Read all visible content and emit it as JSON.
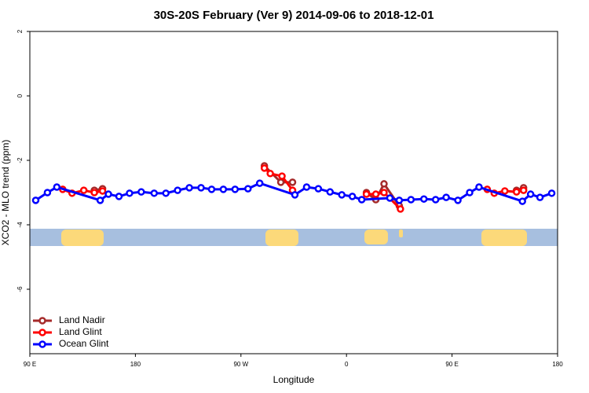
{
  "chart_data": {
    "type": "line",
    "title": "30S-20S February (Ver 9)   2014-09-06 to 2018-12-01",
    "x_label": "Longitude",
    "y_label": "XCO2 - MLO trend (ppm)",
    "xlim": [
      90,
      540
    ],
    "xticks": [
      {
        "value": 90,
        "label": "90 E"
      },
      {
        "value": 180,
        "label": "180"
      },
      {
        "value": 270,
        "label": "90 W"
      },
      {
        "value": 360,
        "label": "0"
      },
      {
        "value": 450,
        "label": "90 E"
      },
      {
        "value": 540,
        "label": "180"
      }
    ],
    "ylim": [
      -8,
      2
    ],
    "yticks": [
      2,
      0,
      -2,
      -4,
      -6
    ],
    "legend": "bottom-left",
    "series": [
      {
        "name": "Land Nadir",
        "color": "#a52a2a",
        "x": [
          145,
          152,
          null,
          290,
          304,
          314,
          null,
          377,
          385,
          392,
          405,
          null,
          505,
          511
        ],
        "values": [
          -2.93,
          -2.88,
          null,
          -2.17,
          -2.68,
          -2.68,
          null,
          -3.0,
          -3.22,
          -2.73,
          -3.41,
          null,
          -2.93,
          -2.85
        ]
      },
      {
        "name": "Land Glint",
        "color": "#ff0000",
        "x": [
          118,
          126,
          136,
          145,
          152,
          null,
          290,
          295,
          305,
          314,
          null,
          377,
          385,
          392,
          406,
          null,
          480,
          486,
          495,
          505,
          511
        ],
        "values": [
          -2.9,
          -3.02,
          -2.93,
          -3.0,
          -2.95,
          null,
          -2.24,
          -2.41,
          -2.49,
          -2.93,
          null,
          -3.05,
          -3.05,
          -3.0,
          -3.51,
          null,
          -2.9,
          -3.02,
          -2.95,
          -2.98,
          -2.93
        ]
      },
      {
        "name": "Ocean Glint",
        "color": "#0000ff",
        "x": [
          95,
          105,
          113,
          150,
          157,
          166,
          175,
          185,
          196,
          206,
          216,
          226,
          236,
          245,
          255,
          265,
          276,
          286,
          316,
          326,
          336,
          346,
          356,
          365,
          373,
          397,
          405,
          415,
          426,
          436,
          445,
          455,
          465,
          473,
          510,
          517,
          525,
          535
        ],
        "values": [
          -3.24,
          -3.0,
          -2.83,
          -3.24,
          -3.05,
          -3.12,
          -3.02,
          -2.98,
          -3.02,
          -3.02,
          -2.93,
          -2.85,
          -2.85,
          -2.9,
          -2.9,
          -2.9,
          -2.88,
          -2.71,
          -3.07,
          -2.83,
          -2.88,
          -2.98,
          -3.07,
          -3.12,
          -3.22,
          -3.17,
          -3.24,
          -3.22,
          -3.2,
          -3.22,
          -3.15,
          -3.24,
          -3.0,
          -2.83,
          -3.27,
          -3.05,
          -3.15,
          -3.02
        ]
      }
    ]
  }
}
